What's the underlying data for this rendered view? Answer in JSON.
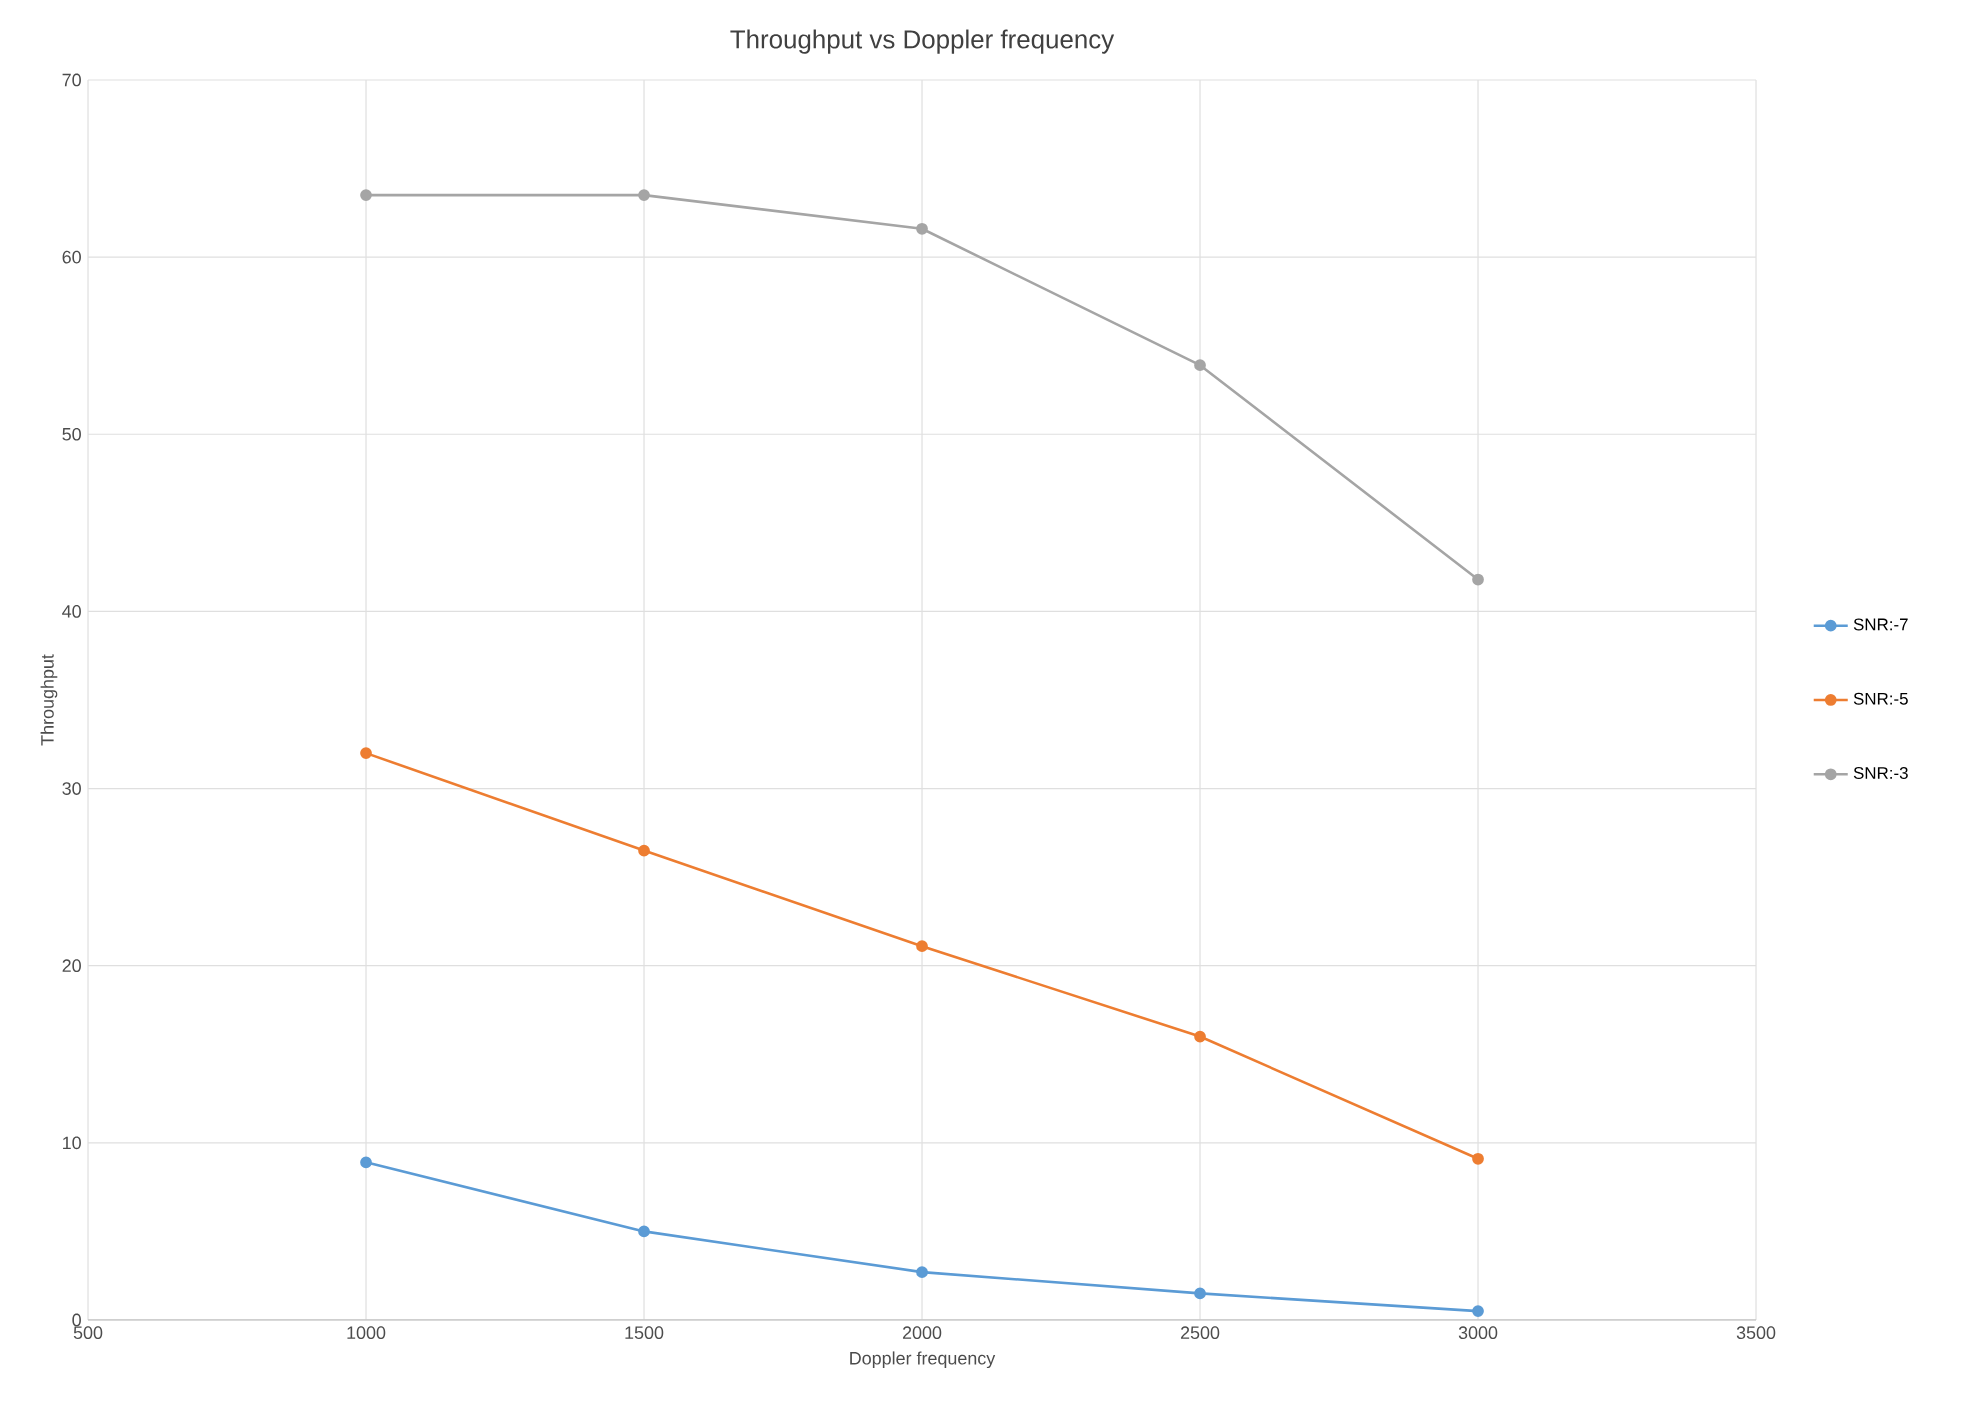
{
  "chart_data": {
    "type": "line",
    "title": "Throughput vs Doppler frequency",
    "xlabel": "Doppler frequency",
    "ylabel": "Throughput",
    "x": [
      1000,
      1500,
      2000,
      2500,
      3000
    ],
    "series": [
      {
        "name": "SNR:-7",
        "color": "#5b9bd5",
        "values": [
          8.9,
          5.0,
          2.7,
          1.5,
          0.5
        ]
      },
      {
        "name": "SNR:-5",
        "color": "#ed7d31",
        "values": [
          32.0,
          26.5,
          21.1,
          16.0,
          9.1
        ]
      },
      {
        "name": "SNR:-3",
        "color": "#a5a5a5",
        "values": [
          63.5,
          63.5,
          61.6,
          53.9,
          41.8
        ]
      }
    ],
    "xlim": [
      500,
      3500
    ],
    "xticks": [
      500,
      1000,
      1500,
      2000,
      2500,
      3000,
      3500
    ],
    "ylim": [
      0,
      70
    ],
    "yticks": [
      0,
      10,
      20,
      30,
      40,
      50,
      60,
      70
    ],
    "grid": true,
    "legend": "right",
    "marker": "circle",
    "line_style": "solid"
  }
}
